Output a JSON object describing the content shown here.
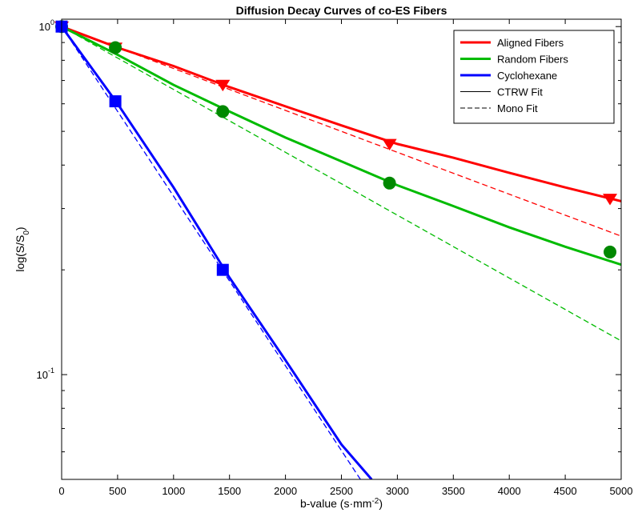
{
  "chart_data": {
    "type": "line",
    "title": "Diffusion Decay Curves of co-ES Fibers",
    "xlabel": "b-value (s·mm",
    "xlabel_sup": "-2",
    "xlabel_suffix": ")",
    "ylabel": "log(S/S",
    "ylabel_sub": "0",
    "ylabel_suffix": ")",
    "xlim": [
      0,
      5000
    ],
    "ylim": [
      0.05,
      1.05
    ],
    "yscale": "log",
    "xticks": [
      "0",
      "500",
      "1000",
      "1500",
      "2000",
      "2500",
      "3000",
      "3500",
      "4000",
      "4500",
      "5000"
    ],
    "yticks": [
      {
        "value": 0.1,
        "base": "10",
        "exp": "-1"
      },
      {
        "value": 1,
        "base": "10",
        "exp": "0"
      }
    ],
    "grid": false,
    "legend_position": "top-right",
    "legend": [
      {
        "label": "Aligned Fibers",
        "color": "#ff0000",
        "style": "solid",
        "width": 3
      },
      {
        "label": "Random Fibers",
        "color": "#00bb00",
        "style": "solid",
        "width": 3
      },
      {
        "label": "Cyclohexane",
        "color": "#0000ff",
        "style": "solid",
        "width": 3
      },
      {
        "label": "CTRW Fit",
        "color": "#000000",
        "style": "solid",
        "width": 1
      },
      {
        "label": "Mono Fit",
        "color": "#000000",
        "style": "dashed",
        "width": 1
      }
    ],
    "series": [
      {
        "name": "Aligned Fibers",
        "color": "#ff0000",
        "marker": "triangle-down",
        "points": [
          {
            "x": 0,
            "y": 1.0
          },
          {
            "x": 480,
            "y": 0.87
          },
          {
            "x": 1440,
            "y": 0.68
          },
          {
            "x": 2930,
            "y": 0.46
          },
          {
            "x": 4900,
            "y": 0.32
          }
        ],
        "ctrw_fit": [
          {
            "x": 0,
            "y": 1.0
          },
          {
            "x": 500,
            "y": 0.87
          },
          {
            "x": 1000,
            "y": 0.77
          },
          {
            "x": 1500,
            "y": 0.67
          },
          {
            "x": 2000,
            "y": 0.59
          },
          {
            "x": 2500,
            "y": 0.52
          },
          {
            "x": 3000,
            "y": 0.46
          },
          {
            "x": 3500,
            "y": 0.42
          },
          {
            "x": 4000,
            "y": 0.38
          },
          {
            "x": 4500,
            "y": 0.345
          },
          {
            "x": 5000,
            "y": 0.315
          }
        ],
        "mono_fit": [
          {
            "x": 0,
            "y": 1.0
          },
          {
            "x": 5000,
            "y": 0.25
          }
        ]
      },
      {
        "name": "Random Fibers",
        "color": "#00bb00",
        "marker_color": "#008800",
        "marker": "circle",
        "points": [
          {
            "x": 0,
            "y": 1.0
          },
          {
            "x": 480,
            "y": 0.87
          },
          {
            "x": 1440,
            "y": 0.57
          },
          {
            "x": 2930,
            "y": 0.355
          },
          {
            "x": 4900,
            "y": 0.225
          }
        ],
        "ctrw_fit": [
          {
            "x": 0,
            "y": 1.0
          },
          {
            "x": 500,
            "y": 0.83
          },
          {
            "x": 1000,
            "y": 0.68
          },
          {
            "x": 1500,
            "y": 0.57
          },
          {
            "x": 2000,
            "y": 0.48
          },
          {
            "x": 2500,
            "y": 0.41
          },
          {
            "x": 3000,
            "y": 0.35
          },
          {
            "x": 3500,
            "y": 0.305
          },
          {
            "x": 4000,
            "y": 0.265
          },
          {
            "x": 4500,
            "y": 0.233
          },
          {
            "x": 5000,
            "y": 0.207
          }
        ],
        "mono_fit": [
          {
            "x": 0,
            "y": 1.0
          },
          {
            "x": 5000,
            "y": 0.125
          }
        ]
      },
      {
        "name": "Cyclohexane",
        "color": "#0000ff",
        "marker": "square",
        "points": [
          {
            "x": 0,
            "y": 1.0
          },
          {
            "x": 480,
            "y": 0.61
          },
          {
            "x": 1440,
            "y": 0.2
          }
        ],
        "ctrw_fit": [
          {
            "x": 0,
            "y": 1.0
          },
          {
            "x": 500,
            "y": 0.6
          },
          {
            "x": 1000,
            "y": 0.345
          },
          {
            "x": 1500,
            "y": 0.19
          },
          {
            "x": 2000,
            "y": 0.11
          },
          {
            "x": 2500,
            "y": 0.063
          },
          {
            "x": 2770,
            "y": 0.05
          }
        ],
        "mono_fit": [
          {
            "x": 0,
            "y": 1.0
          },
          {
            "x": 2670,
            "y": 0.05
          }
        ]
      }
    ]
  }
}
